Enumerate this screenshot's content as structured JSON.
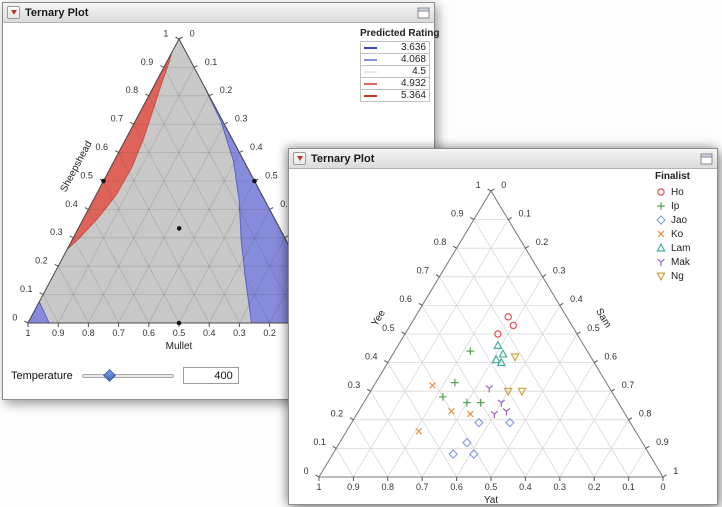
{
  "icons": {
    "disclosure": "red-triangle-down-icon",
    "window_button": "window-options-icon"
  },
  "chart_data": [
    {
      "type": "scatter",
      "subtype": "ternary-contour",
      "window_title": "Ternary Plot",
      "legend_title": "Predicted Rating",
      "axes": {
        "left": "Sheepshead",
        "bottom": "Mullet",
        "right": ""
      },
      "tick_labels": [
        "0",
        "0.1",
        "0.2",
        "0.3",
        "0.4",
        "0.5",
        "0.6",
        "0.7",
        "0.8",
        "0.9",
        "1"
      ],
      "contour_levels": [
        {
          "value": "3.636",
          "color": "#3a46c2"
        },
        {
          "value": "4.068",
          "color": "#8890dc"
        },
        {
          "value": "4.5",
          "color": "#e6e6f2"
        },
        {
          "value": "4.932",
          "color": "#d96b64"
        },
        {
          "value": "5.364",
          "color": "#cb3228"
        }
      ],
      "surface": {
        "base_color": "#c8c8c8",
        "regions": [
          {
            "name": "high-red",
            "color": "#e0635a",
            "stroke": "#c84f48",
            "vw": [
              [
                0.26,
                0
              ],
              [
                0.45,
                0
              ],
              [
                0.65,
                0
              ],
              [
                0.82,
                0
              ],
              [
                0.95,
                0
              ],
              [
                0.92,
                0.1
              ],
              [
                0.85,
                0.13
              ],
              [
                0.75,
                0.155
              ],
              [
                0.65,
                0.165
              ],
              [
                0.55,
                0.155
              ],
              [
                0.45,
                0.12
              ],
              [
                0.37,
                0.075
              ],
              [
                0.3,
                0.03
              ]
            ]
          },
          {
            "name": "low-blue",
            "color": "#868bdb",
            "stroke": "#5a64c8",
            "vw": [
              [
                0.83,
                1
              ],
              [
                0.65,
                1
              ],
              [
                0.45,
                1
              ],
              [
                0.25,
                1
              ],
              [
                0,
                1
              ],
              [
                0,
                0.87
              ],
              [
                0,
                0.74
              ],
              [
                0.15,
                0.76
              ],
              [
                0.29,
                0.79
              ],
              [
                0.43,
                0.85
              ],
              [
                0.57,
                0.92
              ],
              [
                0.71,
                0.98
              ]
            ]
          },
          {
            "name": "low-blue-corner",
            "color": "#868bdb",
            "stroke": "#5a64c8",
            "vw": [
              [
                0.075,
                0
              ],
              [
                0,
                0
              ],
              [
                0,
                0.07
              ]
            ]
          }
        ]
      },
      "design_points": [
        [
          0.333,
          0.333,
          0.334
        ],
        [
          0.5,
          0.5,
          0
        ],
        [
          0,
          0.5,
          0.5
        ],
        [
          0.5,
          0,
          0.5
        ]
      ],
      "slider": {
        "label": "Temperature",
        "value": "400",
        "fraction": 0.3
      }
    },
    {
      "type": "scatter",
      "subtype": "ternary-scatter",
      "window_title": "Ternary Plot",
      "legend_title": "Finalist",
      "axes": {
        "left": "Yee",
        "bottom": "Yat",
        "right": "Sam"
      },
      "tick_labels": [
        "0",
        "0.1",
        "0.2",
        "0.3",
        "0.4",
        "0.5",
        "0.6",
        "0.7",
        "0.8",
        "0.9",
        "1"
      ],
      "series": [
        {
          "name": "Ho",
          "symbol": "circle",
          "color": "#e2514c",
          "points": [
            [
              0.56,
              0.17,
              0.27
            ],
            [
              0.53,
              0.17,
              0.3
            ],
            [
              0.5,
              0.23,
              0.27
            ]
          ]
        },
        {
          "name": "Ip",
          "symbol": "plus",
          "color": "#56a054",
          "points": [
            [
              0.44,
              0.34,
              0.22
            ],
            [
              0.33,
              0.44,
              0.23
            ],
            [
              0.28,
              0.5,
              0.22
            ],
            [
              0.26,
              0.44,
              0.3
            ],
            [
              0.26,
              0.4,
              0.34
            ]
          ]
        },
        {
          "name": "Jao",
          "symbol": "diamond",
          "color": "#8b9fe3",
          "points": [
            [
              0.19,
              0.44,
              0.37
            ],
            [
              0.19,
              0.35,
              0.46
            ],
            [
              0.12,
              0.51,
              0.37
            ],
            [
              0.08,
              0.51,
              0.41
            ],
            [
              0.08,
              0.57,
              0.35
            ]
          ]
        },
        {
          "name": "Ko",
          "symbol": "x",
          "color": "#e89046",
          "points": [
            [
              0.32,
              0.51,
              0.17
            ],
            [
              0.23,
              0.5,
              0.27
            ],
            [
              0.16,
              0.63,
              0.21
            ],
            [
              0.22,
              0.45,
              0.33
            ]
          ]
        },
        {
          "name": "Lam",
          "symbol": "triangle-up",
          "color": "#44ad99",
          "points": [
            [
              0.46,
              0.25,
              0.29
            ],
            [
              0.43,
              0.25,
              0.32
            ],
            [
              0.41,
              0.28,
              0.31
            ],
            [
              0.4,
              0.27,
              0.33
            ]
          ]
        },
        {
          "name": "Mak",
          "symbol": "y",
          "color": "#9b63c9",
          "points": [
            [
              0.31,
              0.35,
              0.34
            ],
            [
              0.26,
              0.34,
              0.4
            ],
            [
              0.22,
              0.38,
              0.4
            ],
            [
              0.23,
              0.34,
              0.43
            ]
          ]
        },
        {
          "name": "Ng",
          "symbol": "triangle-down",
          "color": "#c9a53b",
          "points": [
            [
              0.42,
              0.22,
              0.36
            ],
            [
              0.3,
              0.3,
              0.4
            ],
            [
              0.3,
              0.26,
              0.44
            ]
          ]
        }
      ]
    }
  ]
}
